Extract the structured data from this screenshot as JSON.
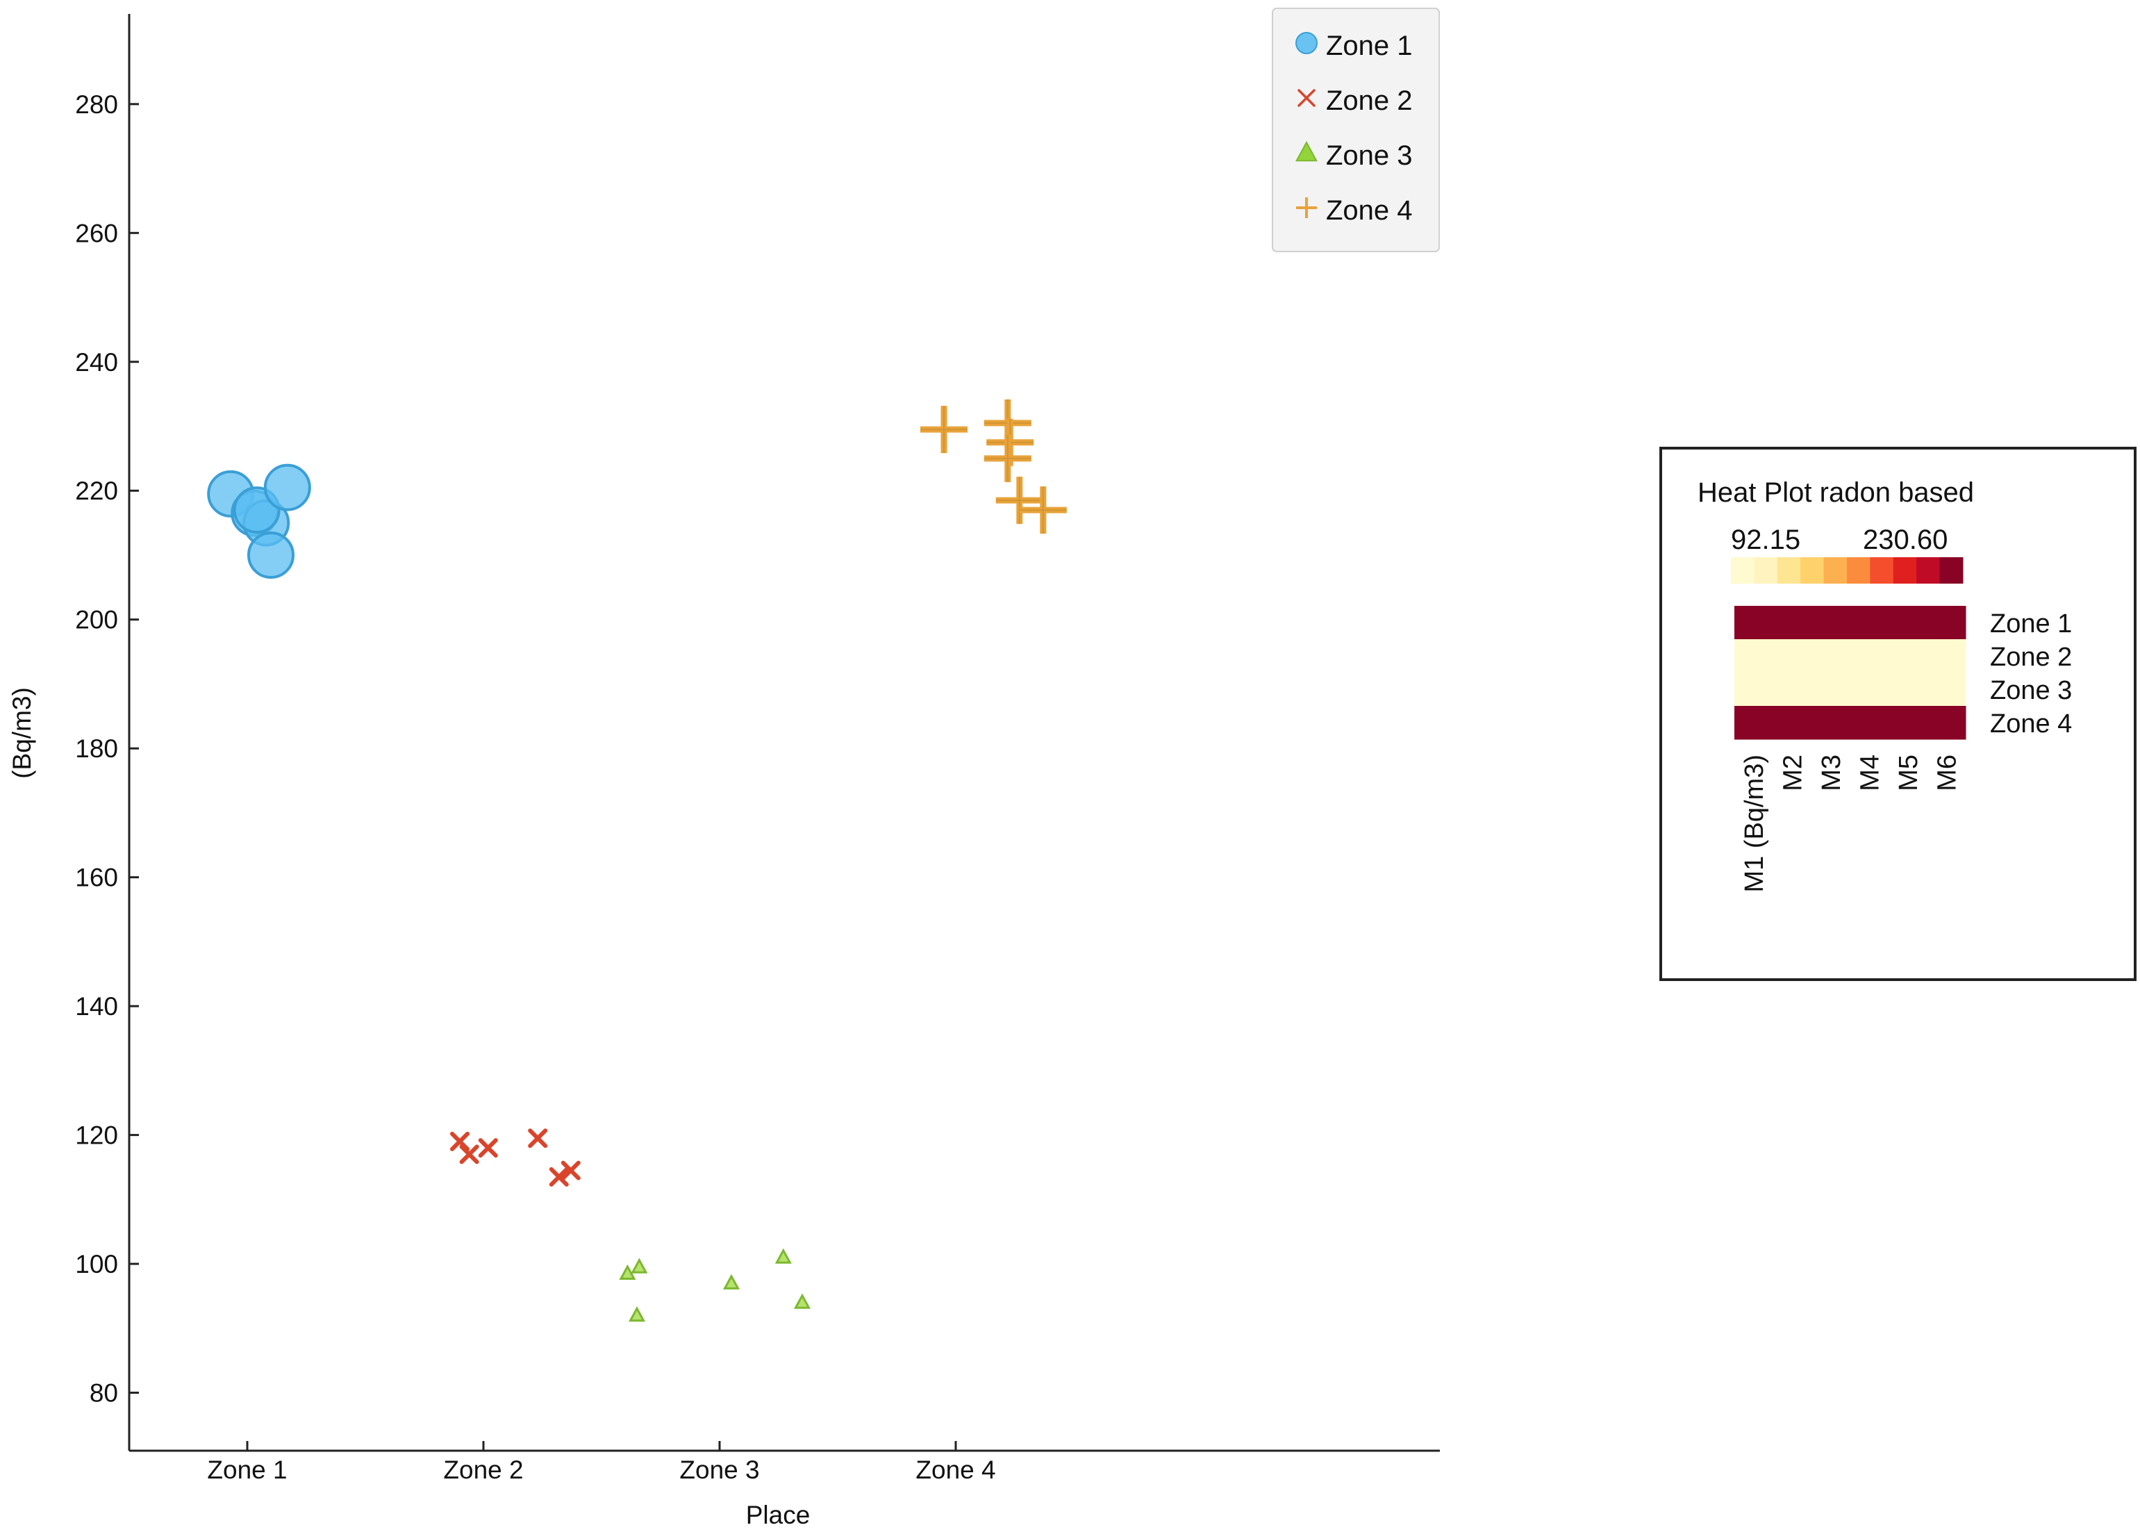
{
  "chart_data": [
    {
      "type": "scatter",
      "title": "",
      "xlabel": "Place",
      "ylabel": "(Bq/m3)",
      "categories": [
        "Zone 1",
        "Zone 2",
        "Zone 3",
        "Zone 4"
      ],
      "xlim": [
        0.5,
        6.05
      ],
      "ylim": [
        71,
        294
      ],
      "yticks": [
        80,
        100,
        120,
        140,
        160,
        180,
        200,
        220,
        240,
        260,
        280
      ],
      "grid": false,
      "legend_position": "top-right",
      "series": [
        {
          "name": "Zone 1",
          "marker": "circle",
          "color": "#5bbdf2",
          "points": [
            [
              0.93,
              219.5
            ],
            [
              1.03,
              216.5
            ],
            [
              1.08,
              215.0
            ],
            [
              1.04,
              217.0
            ],
            [
              1.1,
              210.0
            ],
            [
              1.17,
              220.5
            ]
          ]
        },
        {
          "name": "Zone 2",
          "marker": "x",
          "color": "#d9452b",
          "points": [
            [
              1.9,
              119.0
            ],
            [
              1.94,
              117.0
            ],
            [
              2.02,
              118.0
            ],
            [
              2.23,
              119.5
            ],
            [
              2.32,
              113.5
            ],
            [
              2.37,
              114.5
            ]
          ]
        },
        {
          "name": "Zone 3",
          "marker": "triangle",
          "color": "#93d43a",
          "points": [
            [
              2.61,
              98.5
            ],
            [
              2.66,
              99.5
            ],
            [
              2.65,
              92.0
            ],
            [
              3.05,
              97.0
            ],
            [
              3.27,
              101.0
            ],
            [
              3.35,
              94.0
            ]
          ]
        },
        {
          "name": "Zone 4",
          "marker": "plus",
          "color": "#e8a33a",
          "points": [
            [
              3.95,
              229.5
            ],
            [
              4.22,
              230.5
            ],
            [
              4.23,
              227.5
            ],
            [
              4.22,
              225.0
            ],
            [
              4.27,
              218.5
            ],
            [
              4.37,
              217.0
            ]
          ]
        }
      ]
    },
    {
      "type": "heatmap",
      "title": "Heat Plot radon based",
      "colorbar": {
        "min_label": "92.15",
        "max_label": "230.60",
        "min": 92.15,
        "max": 230.6
      },
      "rows": [
        "Zone 1",
        "Zone 2",
        "Zone 3",
        "Zone 4"
      ],
      "columns": [
        "M1 (Bq/m3)",
        "M2",
        "M3",
        "M4",
        "M5",
        "M6"
      ],
      "values": [
        [
          219.5,
          229.0,
          217.0,
          217.0,
          229.0,
          217.0
        ],
        [
          92.15,
          92.15,
          92.15,
          92.15,
          92.15,
          92.15
        ],
        [
          92.15,
          92.15,
          92.15,
          92.15,
          92.15,
          92.15
        ],
        [
          230.0,
          225.0,
          218.5,
          230.6,
          230.6,
          230.6
        ]
      ]
    }
  ]
}
